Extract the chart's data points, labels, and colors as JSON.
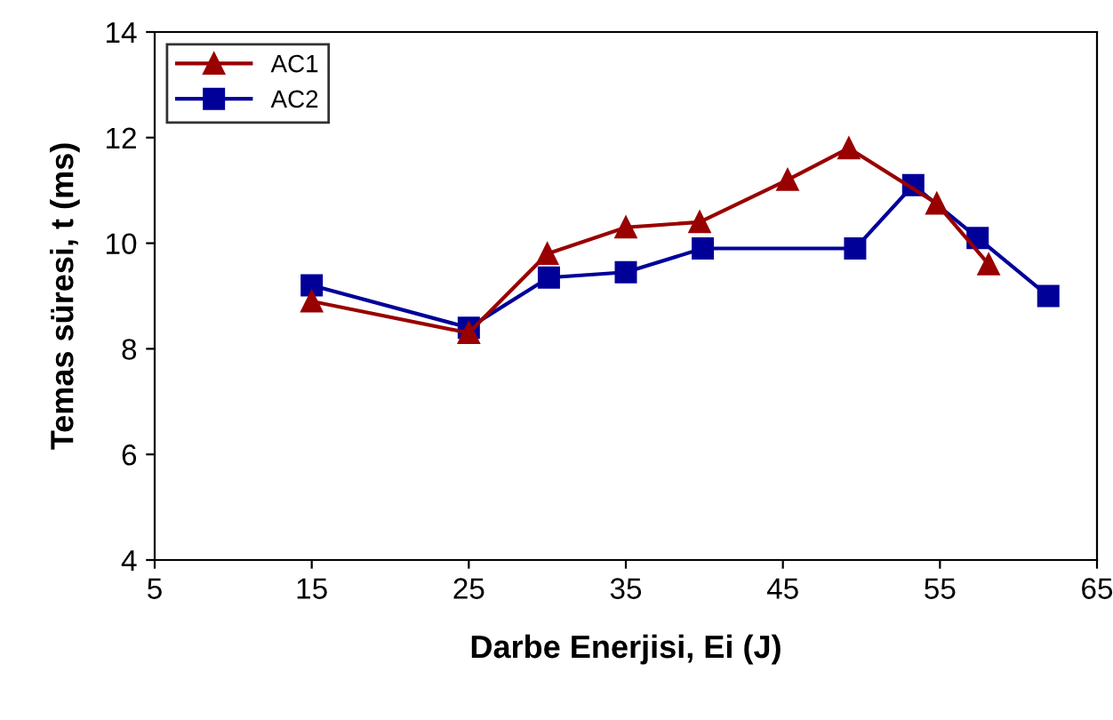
{
  "chart_data": {
    "type": "line",
    "xlabel": "Darbe Enerjisi, Ei (J)",
    "ylabel": "Temas süresi, t (ms)",
    "xlim": [
      5,
      65
    ],
    "xticks": [
      5,
      15,
      25,
      35,
      45,
      55,
      65
    ],
    "ylim": [
      4,
      14
    ],
    "yticks": [
      4,
      6,
      8,
      10,
      12,
      14
    ],
    "grid": false,
    "legend": "top left",
    "series": [
      {
        "name": "AC1",
        "color": "#990000",
        "marker": "triangle",
        "x": [
          15,
          25,
          30,
          35,
          39.7,
          45.3,
          49.2,
          54.8,
          58.1
        ],
        "values": [
          8.9,
          8.3,
          9.8,
          10.3,
          10.4,
          11.2,
          11.8,
          10.75,
          9.6
        ]
      },
      {
        "name": "AC2",
        "color": "#000099",
        "marker": "square",
        "x": [
          15,
          25,
          30.1,
          35,
          39.9,
          49.6,
          53.3,
          57.4,
          61.9
        ],
        "values": [
          9.2,
          8.4,
          9.35,
          9.45,
          9.9,
          9.9,
          11.1,
          10.1,
          9.0
        ]
      }
    ]
  }
}
